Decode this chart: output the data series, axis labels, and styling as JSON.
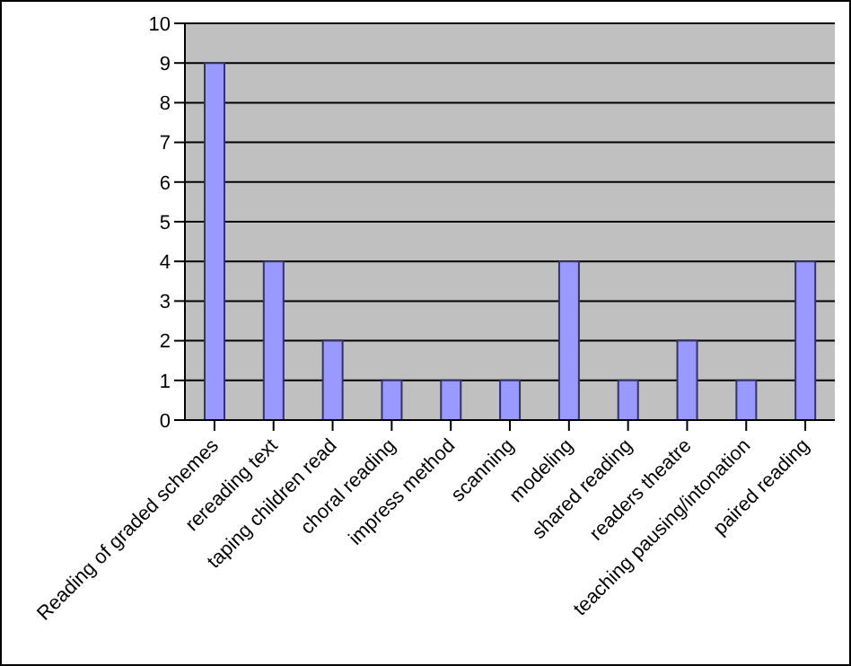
{
  "chart_data": {
    "type": "bar",
    "categories": [
      "Reading of graded schemes",
      "rereading text",
      "taping children read",
      "choral reading",
      "impress method",
      "scanning",
      "modeling",
      "shared reading",
      "readers theatre",
      "teaching pausing/intonation",
      "paired reading"
    ],
    "values": [
      9,
      4,
      2,
      1,
      1,
      1,
      4,
      1,
      2,
      1,
      4
    ],
    "color": "#9999ff",
    "ylim": [
      0,
      10
    ],
    "yticks": [
      0,
      1,
      2,
      3,
      4,
      5,
      6,
      7,
      8,
      9,
      10
    ],
    "grid": "y"
  }
}
